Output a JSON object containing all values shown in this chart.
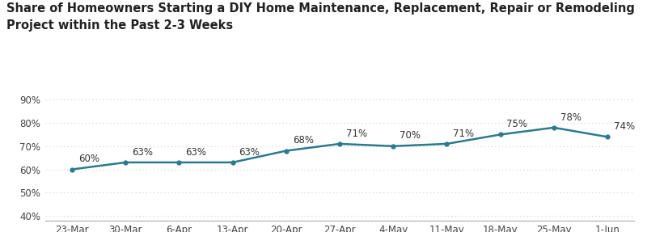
{
  "title_line1": "Share of Homeowners Starting a DIY Home Maintenance, Replacement, Repair or Remodeling",
  "title_line2": "Project within the Past 2-3 Weeks",
  "x_labels": [
    "23-Mar",
    "30-Mar",
    "6-Apr",
    "13-Apr",
    "20-Apr",
    "27-Apr",
    "4-May",
    "11-May",
    "18-May",
    "25-May",
    "1-Jun"
  ],
  "y_values": [
    60,
    63,
    63,
    63,
    68,
    71,
    70,
    71,
    75,
    78,
    74
  ],
  "y_ticks": [
    40,
    50,
    60,
    70,
    80,
    90
  ],
  "ylim": [
    38,
    94
  ],
  "line_color": "#2a7b8c",
  "line_width": 1.8,
  "marker_size": 3.5,
  "background_color": "#ffffff",
  "grid_color": "#cccccc",
  "title_fontsize": 10.5,
  "tick_fontsize": 8.5,
  "annotation_fontsize": 8.5
}
